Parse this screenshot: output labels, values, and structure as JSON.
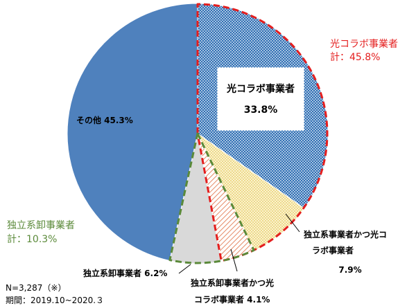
{
  "chart_data": {
    "type": "pie",
    "slices": [
      {
        "label": "光コラボ事業者",
        "value": 33.8,
        "value_label": "33.8%",
        "color": "#2f6fb4",
        "pattern": "dots-blue"
      },
      {
        "label": "独立系事業者かつ光コラボ事業者",
        "value": 7.9,
        "value_label": "7.9%",
        "color": "#f2dc8a",
        "pattern": "dots-yellow"
      },
      {
        "label": "独立系卸事業者かつ光コラボ事業者",
        "value": 4.1,
        "value_label": "4.1%",
        "color": "#e58a66",
        "pattern": "hatch-orange"
      },
      {
        "label": "独立系卸事業者",
        "value": 6.2,
        "value_label": "6.2%",
        "color": "#d9d9d9",
        "pattern": "solid"
      },
      {
        "label": "その他",
        "value": 45.3,
        "value_label": "45.3%",
        "color": "#4f81bd",
        "pattern": "solid"
      }
    ],
    "group_outlines": [
      {
        "label_line1": "光コラボ事業者",
        "label_line2": "計：45.8%",
        "color": "#e41e1e",
        "slice_indices": [
          0,
          1,
          2
        ]
      },
      {
        "label_line1": "独立系卸事業者",
        "label_line2": "計：10.3%",
        "color": "#5b8a3a",
        "slice_indices": [
          2,
          3
        ]
      }
    ]
  },
  "labels": {
    "hikari_name": "光コラボ事業者",
    "hikari_pct": "33.8%",
    "dok_hikari_line1": "独立系事業者かつ光コ",
    "dok_hikari_line2": "ラボ事業者",
    "dok_hikari_pct": "7.9%",
    "orosi_hikari_line1": "独立系卸事業者かつ光",
    "orosi_hikari_line2": "コラボ事業者 4.1%",
    "orosi": "独立系卸事業者 6.2%",
    "sonota": "その他 45.3%",
    "total_hikari_line1": "光コラボ事業者",
    "total_hikari_line2": "計：45.8%",
    "total_orosi_line1": "独立系卸事業者",
    "total_orosi_line2": "計：10.3%"
  },
  "footnote": {
    "line1": "N=3,287（※）",
    "line2": "期間：2019.10~2020.３"
  }
}
